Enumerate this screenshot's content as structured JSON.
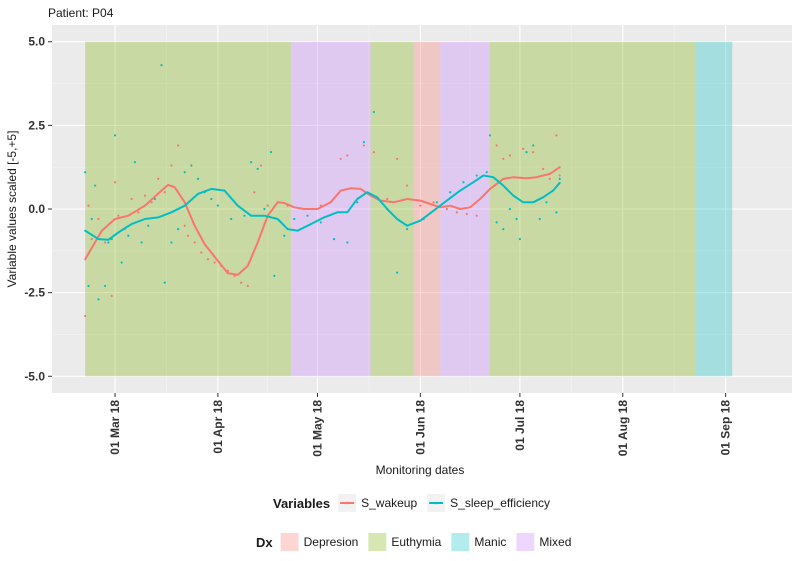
{
  "chart_data": {
    "type": "line",
    "title": "Patient: P04",
    "xlabel": "Monitoring dates",
    "ylabel": "Variable values scaled [-5,+5]",
    "ylim": [
      -5.5,
      5.5
    ],
    "yticks": [
      5.0,
      2.5,
      0.0,
      -2.5,
      -5.0
    ],
    "ytick_labels": [
      "5.0",
      "2.5",
      "0.0",
      "-2.5",
      "-5.0"
    ],
    "xlim": [
      "2018-02-10",
      "2018-09-21"
    ],
    "xticks": [
      "2018-03-01",
      "2018-04-01",
      "2018-05-01",
      "2018-06-01",
      "2018-07-01",
      "2018-08-01",
      "2018-09-01"
    ],
    "xtick_labels": [
      "01 Mar 18",
      "01 Apr 18",
      "01 May 18",
      "01 Jun 18",
      "01 Jul 18",
      "01 Aug 18",
      "01 Sep 18"
    ],
    "grid": true,
    "diagnosis_bands": [
      {
        "dx": "Euthymia",
        "start": "2018-02-20",
        "end": "2018-04-23"
      },
      {
        "dx": "Mixed",
        "start": "2018-04-23",
        "end": "2018-05-17"
      },
      {
        "dx": "Euthymia",
        "start": "2018-05-17",
        "end": "2018-05-30"
      },
      {
        "dx": "Depresion",
        "start": "2018-05-30",
        "end": "2018-06-07"
      },
      {
        "dx": "Mixed",
        "start": "2018-06-07",
        "end": "2018-06-22"
      },
      {
        "dx": "Euthymia",
        "start": "2018-06-22",
        "end": "2018-08-23"
      },
      {
        "dx": "Manic",
        "start": "2018-08-23",
        "end": "2018-09-03"
      }
    ],
    "series": [
      {
        "name": "S_wakeup",
        "color": "#F8766D",
        "smooth": [
          [
            "2018-02-20",
            -1.5
          ],
          [
            "2018-02-25",
            -0.65
          ],
          [
            "2018-03-01",
            -0.3
          ],
          [
            "2018-03-05",
            -0.2
          ],
          [
            "2018-03-10",
            0.1
          ],
          [
            "2018-03-15",
            0.55
          ],
          [
            "2018-03-17",
            0.72
          ],
          [
            "2018-03-19",
            0.65
          ],
          [
            "2018-03-22",
            0.2
          ],
          [
            "2018-03-25",
            -0.5
          ],
          [
            "2018-03-28",
            -1.05
          ],
          [
            "2018-04-01",
            -1.55
          ],
          [
            "2018-04-04",
            -1.92
          ],
          [
            "2018-04-07",
            -1.97
          ],
          [
            "2018-04-10",
            -1.7
          ],
          [
            "2018-04-13",
            -1.0
          ],
          [
            "2018-04-16",
            -0.2
          ],
          [
            "2018-04-19",
            0.2
          ],
          [
            "2018-04-21",
            0.18
          ],
          [
            "2018-04-24",
            0.05
          ],
          [
            "2018-04-27",
            0.0
          ],
          [
            "2018-05-01",
            0.0
          ],
          [
            "2018-05-05",
            0.2
          ],
          [
            "2018-05-08",
            0.55
          ],
          [
            "2018-05-11",
            0.62
          ],
          [
            "2018-05-14",
            0.6
          ],
          [
            "2018-05-17",
            0.4
          ],
          [
            "2018-05-20",
            0.25
          ],
          [
            "2018-05-24",
            0.2
          ],
          [
            "2018-05-28",
            0.3
          ],
          [
            "2018-06-01",
            0.25
          ],
          [
            "2018-06-04",
            0.15
          ],
          [
            "2018-06-07",
            0.05
          ],
          [
            "2018-06-10",
            0.1
          ],
          [
            "2018-06-13",
            0.0
          ],
          [
            "2018-06-16",
            0.05
          ],
          [
            "2018-06-19",
            0.3
          ],
          [
            "2018-06-22",
            0.6
          ],
          [
            "2018-06-26",
            0.9
          ],
          [
            "2018-06-29",
            0.95
          ],
          [
            "2018-07-03",
            0.92
          ],
          [
            "2018-07-06",
            0.95
          ],
          [
            "2018-07-10",
            1.05
          ],
          [
            "2018-07-13",
            1.25
          ]
        ],
        "points": [
          [
            "2018-02-20",
            -3.2
          ],
          [
            "2018-02-21",
            0.1
          ],
          [
            "2018-02-22",
            -0.9
          ],
          [
            "2018-02-24",
            -0.3
          ],
          [
            "2018-02-26",
            -1.0
          ],
          [
            "2018-02-28",
            -2.6
          ],
          [
            "2018-03-01",
            0.8
          ],
          [
            "2018-03-02",
            -0.2
          ],
          [
            "2018-03-04",
            -0.6
          ],
          [
            "2018-03-06",
            0.3
          ],
          [
            "2018-03-08",
            -0.1
          ],
          [
            "2018-03-10",
            0.4
          ],
          [
            "2018-03-12",
            0.2
          ],
          [
            "2018-03-14",
            0.9
          ],
          [
            "2018-03-16",
            0.5
          ],
          [
            "2018-03-18",
            1.3
          ],
          [
            "2018-03-20",
            1.9
          ],
          [
            "2018-03-22",
            -0.5
          ],
          [
            "2018-03-23",
            -0.8
          ],
          [
            "2018-03-25",
            -1.0
          ],
          [
            "2018-03-27",
            -1.3
          ],
          [
            "2018-03-29",
            -1.5
          ],
          [
            "2018-03-31",
            -1.6
          ],
          [
            "2018-04-02",
            -1.7
          ],
          [
            "2018-04-04",
            -1.85
          ],
          [
            "2018-04-06",
            -2.0
          ],
          [
            "2018-04-08",
            -2.2
          ],
          [
            "2018-04-10",
            -2.3
          ],
          [
            "2018-04-12",
            0.5
          ],
          [
            "2018-04-14",
            1.3
          ],
          [
            "2018-04-16",
            0.1
          ],
          [
            "2018-04-19",
            0.2
          ],
          [
            "2018-04-22",
            0.1
          ],
          [
            "2018-05-02",
            0.1
          ],
          [
            "2018-05-05",
            0.2
          ],
          [
            "2018-05-08",
            1.5
          ],
          [
            "2018-05-10",
            1.6
          ],
          [
            "2018-05-15",
            1.9
          ],
          [
            "2018-05-18",
            1.7
          ],
          [
            "2018-05-22",
            0.3
          ],
          [
            "2018-05-25",
            1.5
          ],
          [
            "2018-05-28",
            0.7
          ],
          [
            "2018-06-01",
            0.1
          ],
          [
            "2018-06-05",
            0.2
          ],
          [
            "2018-06-09",
            0.0
          ],
          [
            "2018-06-12",
            -0.1
          ],
          [
            "2018-06-15",
            -0.15
          ],
          [
            "2018-06-18",
            -0.2
          ],
          [
            "2018-06-24",
            1.9
          ],
          [
            "2018-06-26",
            1.5
          ],
          [
            "2018-06-28",
            1.6
          ],
          [
            "2018-07-02",
            1.8
          ],
          [
            "2018-07-05",
            1.7
          ],
          [
            "2018-07-08",
            1.2
          ],
          [
            "2018-07-10",
            0.9
          ],
          [
            "2018-07-12",
            2.2
          ],
          [
            "2018-07-13",
            1.0
          ]
        ]
      },
      {
        "name": "S_sleep_efficiency",
        "color": "#00BFC4",
        "smooth": [
          [
            "2018-02-20",
            -0.65
          ],
          [
            "2018-02-24",
            -0.9
          ],
          [
            "2018-02-27",
            -0.92
          ],
          [
            "2018-03-02",
            -0.7
          ],
          [
            "2018-03-06",
            -0.45
          ],
          [
            "2018-03-10",
            -0.3
          ],
          [
            "2018-03-14",
            -0.25
          ],
          [
            "2018-03-18",
            -0.1
          ],
          [
            "2018-03-22",
            0.1
          ],
          [
            "2018-03-26",
            0.45
          ],
          [
            "2018-03-30",
            0.6
          ],
          [
            "2018-04-03",
            0.55
          ],
          [
            "2018-04-07",
            0.1
          ],
          [
            "2018-04-11",
            -0.2
          ],
          [
            "2018-04-15",
            -0.2
          ],
          [
            "2018-04-19",
            -0.3
          ],
          [
            "2018-04-22",
            -0.6
          ],
          [
            "2018-04-25",
            -0.65
          ],
          [
            "2018-04-29",
            -0.45
          ],
          [
            "2018-05-03",
            -0.25
          ],
          [
            "2018-05-07",
            -0.1
          ],
          [
            "2018-05-10",
            -0.1
          ],
          [
            "2018-05-13",
            0.3
          ],
          [
            "2018-05-16",
            0.5
          ],
          [
            "2018-05-19",
            0.35
          ],
          [
            "2018-05-22",
            0.0
          ],
          [
            "2018-05-25",
            -0.3
          ],
          [
            "2018-05-28",
            -0.5
          ],
          [
            "2018-06-01",
            -0.35
          ],
          [
            "2018-06-05",
            -0.05
          ],
          [
            "2018-06-09",
            0.25
          ],
          [
            "2018-06-13",
            0.55
          ],
          [
            "2018-06-17",
            0.8
          ],
          [
            "2018-06-20",
            1.0
          ],
          [
            "2018-06-23",
            0.95
          ],
          [
            "2018-06-26",
            0.7
          ],
          [
            "2018-06-29",
            0.4
          ],
          [
            "2018-07-02",
            0.2
          ],
          [
            "2018-07-05",
            0.2
          ],
          [
            "2018-07-08",
            0.35
          ],
          [
            "2018-07-11",
            0.55
          ],
          [
            "2018-07-13",
            0.78
          ]
        ],
        "points": [
          [
            "2018-02-20",
            1.1
          ],
          [
            "2018-02-21",
            -2.3
          ],
          [
            "2018-02-22",
            -0.3
          ],
          [
            "2018-02-23",
            0.7
          ],
          [
            "2018-02-24",
            -2.7
          ],
          [
            "2018-02-26",
            -2.3
          ],
          [
            "2018-02-27",
            -1.0
          ],
          [
            "2018-02-28",
            -0.9
          ],
          [
            "2018-03-01",
            2.2
          ],
          [
            "2018-03-03",
            -1.6
          ],
          [
            "2018-03-05",
            -0.8
          ],
          [
            "2018-03-07",
            1.4
          ],
          [
            "2018-03-09",
            -1.0
          ],
          [
            "2018-03-11",
            -0.5
          ],
          [
            "2018-03-13",
            0.3
          ],
          [
            "2018-03-15",
            4.3
          ],
          [
            "2018-03-16",
            -2.2
          ],
          [
            "2018-03-18",
            -1.0
          ],
          [
            "2018-03-20",
            -0.6
          ],
          [
            "2018-03-22",
            1.1
          ],
          [
            "2018-03-24",
            1.3
          ],
          [
            "2018-03-26",
            0.9
          ],
          [
            "2018-03-28",
            0.5
          ],
          [
            "2018-03-30",
            0.3
          ],
          [
            "2018-04-01",
            0.1
          ],
          [
            "2018-04-05",
            -0.3
          ],
          [
            "2018-04-09",
            -0.2
          ],
          [
            "2018-04-11",
            1.4
          ],
          [
            "2018-04-13",
            1.2
          ],
          [
            "2018-04-15",
            0.0
          ],
          [
            "2018-04-17",
            1.7
          ],
          [
            "2018-04-18",
            -2.0
          ],
          [
            "2018-04-21",
            -0.8
          ],
          [
            "2018-04-24",
            -0.3
          ],
          [
            "2018-04-28",
            -0.2
          ],
          [
            "2018-05-02",
            -0.4
          ],
          [
            "2018-05-06",
            -0.9
          ],
          [
            "2018-05-10",
            -1.0
          ],
          [
            "2018-05-13",
            0.2
          ],
          [
            "2018-05-15",
            2.0
          ],
          [
            "2018-05-18",
            2.9
          ],
          [
            "2018-05-22",
            0.0
          ],
          [
            "2018-05-25",
            -1.9
          ],
          [
            "2018-05-28",
            -0.6
          ],
          [
            "2018-06-02",
            -0.3
          ],
          [
            "2018-06-06",
            0.2
          ],
          [
            "2018-06-10",
            0.5
          ],
          [
            "2018-06-14",
            0.8
          ],
          [
            "2018-06-18",
            1.0
          ],
          [
            "2018-06-21",
            1.1
          ],
          [
            "2018-06-22",
            2.2
          ],
          [
            "2018-06-24",
            -0.4
          ],
          [
            "2018-06-26",
            -0.6
          ],
          [
            "2018-06-28",
            0.0
          ],
          [
            "2018-06-30",
            -0.3
          ],
          [
            "2018-07-01",
            -0.9
          ],
          [
            "2018-07-03",
            1.7
          ],
          [
            "2018-07-05",
            1.9
          ],
          [
            "2018-07-07",
            -0.3
          ],
          [
            "2018-07-09",
            0.2
          ],
          [
            "2018-07-12",
            -0.1
          ],
          [
            "2018-07-13",
            0.9
          ]
        ]
      }
    ],
    "legend_variables": {
      "title": "Variables",
      "items": [
        {
          "label": "S_wakeup",
          "color": "#F8766D"
        },
        {
          "label": "S_sleep_efficiency",
          "color": "#00BFC4"
        }
      ]
    },
    "legend_dx": {
      "title": "Dx",
      "items": [
        {
          "label": "Depresion",
          "color": "#F8766D"
        },
        {
          "label": "Euthymia",
          "color": "#7CAE00"
        },
        {
          "label": "Manic",
          "color": "#00BFC4"
        },
        {
          "label": "Mixed",
          "color": "#C77CFF"
        }
      ]
    }
  }
}
